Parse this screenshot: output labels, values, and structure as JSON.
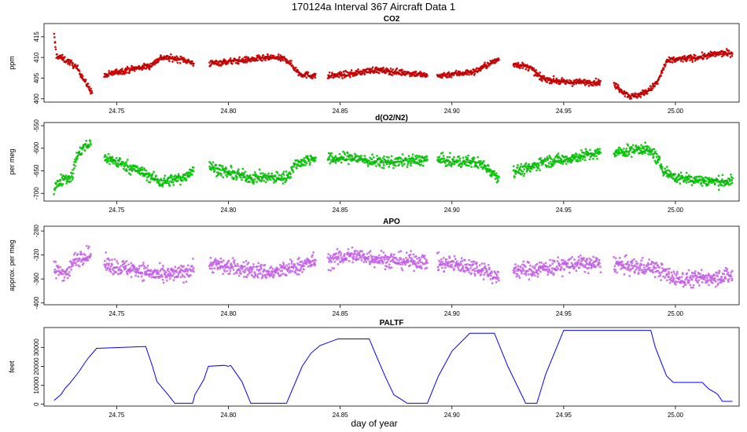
{
  "title": "170124a   Interval 367 Aircraft Data 1",
  "xlabel": "day of year",
  "chart_data": [
    {
      "type": "scatter",
      "title": "CO2",
      "ylabel": "ppm",
      "xlim": [
        24.7175,
        25.0285
      ],
      "ylim": [
        399.2,
        418.2
      ],
      "yticks": [
        400,
        405,
        410,
        415
      ],
      "xticks": [
        24.75,
        24.8,
        24.85,
        24.9,
        24.95,
        25.0
      ],
      "xtick_labels": [
        "24.75",
        "24.80",
        "24.85",
        "24.90",
        "24.95",
        "25.00"
      ],
      "point_color": "#ff0000",
      "edge_color": "#7a0000",
      "noise": 0.7,
      "segments": [
        {
          "x": [
            24.722,
            24.723,
            24.725,
            24.73,
            24.733,
            24.736,
            24.739
          ],
          "y": [
            415.5,
            410.5,
            410,
            408.5,
            407,
            404,
            401.5
          ]
        },
        {
          "x": [
            24.7445,
            24.75,
            24.76,
            24.765,
            24.77,
            24.78,
            24.7845
          ],
          "y": [
            405.5,
            406.5,
            407.5,
            408,
            410,
            409.5,
            408.5
          ]
        },
        {
          "x": [
            24.7915,
            24.8,
            24.81,
            24.82,
            24.826,
            24.832,
            24.839
          ],
          "y": [
            408.5,
            409,
            409.5,
            410,
            409.5,
            406,
            405.5
          ]
        },
        {
          "x": [
            24.8445,
            24.855,
            24.865,
            24.875,
            24.885,
            24.889
          ],
          "y": [
            405.5,
            406,
            407,
            406.5,
            406,
            405.5
          ]
        },
        {
          "x": [
            24.8935,
            24.9,
            24.91,
            24.915,
            24.921
          ],
          "y": [
            405.5,
            406,
            406.5,
            408,
            409.5
          ]
        },
        {
          "x": [
            24.9275,
            24.935,
            24.94,
            24.95,
            24.96,
            24.9665
          ],
          "y": [
            408.5,
            407.5,
            405,
            404,
            404,
            404
          ]
        },
        {
          "x": [
            24.9725,
            24.976,
            24.98,
            24.984,
            24.988,
            24.992,
            24.996,
            25.0,
            25.01,
            25.02,
            25.0255
          ],
          "y": [
            403.5,
            402,
            400.5,
            401,
            402,
            404,
            409,
            409.5,
            410,
            411,
            411
          ]
        }
      ]
    },
    {
      "type": "scatter",
      "title": "d(O2/N2)",
      "ylabel": "per meg",
      "xlim": [
        24.7175,
        25.0285
      ],
      "ylim": [
        -717,
        -543
      ],
      "yticks": [
        -700,
        -650,
        -600,
        -550
      ],
      "ytick_labels": [
        "-700",
        "-650",
        "-600",
        "-550"
      ],
      "xticks": [
        24.75,
        24.8,
        24.85,
        24.9,
        24.95,
        25.0
      ],
      "xtick_labels": [
        "24.75",
        "24.80",
        "24.85",
        "24.90",
        "24.95",
        "25.00"
      ],
      "point_color": "#00ff00",
      "edge_color": "#006400",
      "noise": 12,
      "segments": [
        {
          "x": [
            24.722,
            24.726,
            24.73,
            24.732,
            24.735,
            24.7385
          ],
          "y": [
            -690,
            -665,
            -665,
            -620,
            -600,
            -590
          ]
        },
        {
          "x": [
            24.7445,
            24.75,
            24.76,
            24.77,
            24.78,
            24.7845
          ],
          "y": [
            -620,
            -630,
            -650,
            -675,
            -665,
            -645
          ]
        },
        {
          "x": [
            24.7915,
            24.8,
            24.81,
            24.82,
            24.826,
            24.83,
            24.839
          ],
          "y": [
            -640,
            -655,
            -665,
            -665,
            -665,
            -635,
            -620
          ]
        },
        {
          "x": [
            24.8445,
            24.855,
            24.865,
            24.875,
            24.889
          ],
          "y": [
            -625,
            -620,
            -630,
            -630,
            -625
          ]
        },
        {
          "x": [
            24.8935,
            24.9,
            24.91,
            24.915,
            24.921
          ],
          "y": [
            -625,
            -630,
            -630,
            -640,
            -665
          ]
        },
        {
          "x": [
            24.9275,
            24.935,
            24.94,
            24.95,
            24.96,
            24.9665
          ],
          "y": [
            -650,
            -645,
            -630,
            -625,
            -615,
            -612
          ]
        },
        {
          "x": [
            24.9725,
            24.98,
            24.985,
            24.99,
            24.995,
            25.0,
            25.01,
            25.02,
            25.0255
          ],
          "y": [
            -610,
            -605,
            -600,
            -610,
            -650,
            -665,
            -670,
            -675,
            -672
          ]
        }
      ]
    },
    {
      "type": "scatter",
      "title": "APO",
      "ylabel": "approx. per meg",
      "xlim": [
        24.7175,
        25.0285
      ],
      "ylim": [
        -403,
        -272
      ],
      "yticks": [
        -400,
        -360,
        -320,
        -280
      ],
      "ytick_labels": [
        "-400",
        "-360",
        "-320",
        "-280"
      ],
      "xticks": [
        24.75,
        24.8,
        24.85,
        24.9,
        24.95,
        25.0
      ],
      "xtick_labels": [
        "24.75",
        "24.80",
        "24.85",
        "24.90",
        "24.95",
        "25.00"
      ],
      "point_color": "#ee82ee",
      "edge_color": "#8a2be2",
      "noise": 13,
      "segments": [
        {
          "x": [
            24.722,
            24.728,
            24.731,
            24.735,
            24.7385
          ],
          "y": [
            -345,
            -350,
            -330,
            -320,
            -320
          ]
        },
        {
          "x": [
            24.7445,
            24.75,
            24.76,
            24.77,
            24.78,
            24.7845
          ],
          "y": [
            -335,
            -340,
            -345,
            -355,
            -350,
            -340
          ]
        },
        {
          "x": [
            24.7915,
            24.8,
            24.81,
            24.82,
            24.83,
            24.839
          ],
          "y": [
            -335,
            -340,
            -345,
            -350,
            -340,
            -330
          ]
        },
        {
          "x": [
            24.8445,
            24.855,
            24.865,
            24.875,
            24.889
          ],
          "y": [
            -330,
            -320,
            -325,
            -330,
            -330
          ]
        },
        {
          "x": [
            24.8935,
            24.9,
            24.91,
            24.915,
            24.921
          ],
          "y": [
            -335,
            -335,
            -340,
            -345,
            -360
          ]
        },
        {
          "x": [
            24.9275,
            24.935,
            24.945,
            24.955,
            24.9665
          ],
          "y": [
            -345,
            -345,
            -340,
            -335,
            -335
          ]
        },
        {
          "x": [
            24.9725,
            24.98,
            24.99,
            24.995,
            25.0,
            25.01,
            25.02,
            25.0255
          ],
          "y": [
            -335,
            -340,
            -340,
            -350,
            -360,
            -360,
            -355,
            -355
          ]
        }
      ]
    },
    {
      "type": "line",
      "title": "PALTF",
      "ylabel": "feet",
      "xlim": [
        24.7175,
        25.0285
      ],
      "ylim": [
        -1000,
        40500
      ],
      "yticks": [
        0,
        10000,
        20000,
        30000
      ],
      "ytick_labels": [
        "0",
        "10000",
        "20000",
        "30000"
      ],
      "xticks": [
        24.75,
        24.8,
        24.85,
        24.9,
        24.95,
        25.0
      ],
      "xtick_labels": [
        "24.75",
        "24.80",
        "24.85",
        "24.90",
        "24.95",
        "25.00"
      ],
      "line_color": "#0000ff",
      "x": [
        24.722,
        24.725,
        24.727,
        24.729,
        24.733,
        24.737,
        24.741,
        24.763,
        24.766,
        24.768,
        24.773,
        24.776,
        24.784,
        24.785,
        24.789,
        24.791,
        24.798,
        24.8,
        24.801,
        24.806,
        24.81,
        24.82,
        24.826,
        24.833,
        24.837,
        24.841,
        24.849,
        24.85,
        24.863,
        24.866,
        24.87,
        24.874,
        24.88,
        24.889,
        24.894,
        24.9,
        24.908,
        24.914,
        24.919,
        24.925,
        24.933,
        24.938,
        24.942,
        24.95,
        24.989,
        24.991,
        24.996,
        24.999,
        25.012,
        25.015,
        25.018,
        25.019,
        25.021,
        25.0255
      ],
      "y": [
        2000,
        5000,
        8500,
        11000,
        17000,
        24000,
        29500,
        30500,
        20000,
        12000,
        5000,
        500,
        500,
        5000,
        13000,
        20000,
        20500,
        20000,
        20500,
        12000,
        500,
        500,
        500,
        20000,
        27000,
        31000,
        34500,
        34500,
        34500,
        26000,
        15000,
        5000,
        500,
        500,
        15000,
        28000,
        37500,
        37500,
        37500,
        20000,
        500,
        500,
        16000,
        39000,
        39000,
        30000,
        15000,
        11500,
        11500,
        8000,
        6000,
        5000,
        1500,
        1500
      ]
    }
  ]
}
